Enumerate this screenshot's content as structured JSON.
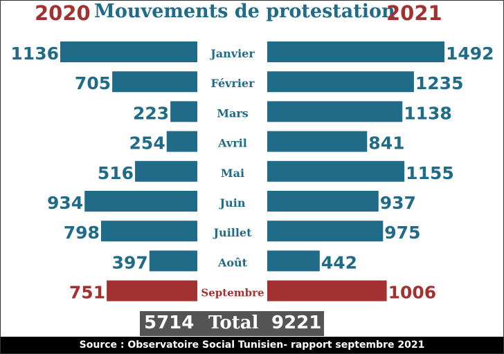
{
  "header": {
    "year_left": "2020",
    "year_right": "2021",
    "title": "Mouvements de protestation"
  },
  "chart_data": {
    "type": "bar",
    "orientation": "horizontal-butterfly",
    "title": "Mouvements de protestation",
    "categories": [
      "Janvier",
      "Février",
      "Mars",
      "Avril",
      "Mai",
      "Juin",
      "Juillet",
      "Août",
      "Septembre"
    ],
    "series": [
      {
        "name": "2020",
        "values": [
          1136,
          705,
          223,
          254,
          516,
          934,
          798,
          397,
          751
        ]
      },
      {
        "name": "2021",
        "values": [
          1492,
          1235,
          1138,
          841,
          1155,
          937,
          975,
          442,
          1006
        ]
      }
    ],
    "highlight_category": "Septembre",
    "colors": {
      "bar": "#206b87",
      "highlight": "#a33131",
      "label": "#206b87",
      "highlight_label": "#a33131"
    }
  },
  "totals": {
    "total_2020": "5714",
    "label": "Total",
    "total_2021": "9221"
  },
  "footer": {
    "source": "Source : Observatoire Social Tunisien- rapport septembre 2021"
  }
}
